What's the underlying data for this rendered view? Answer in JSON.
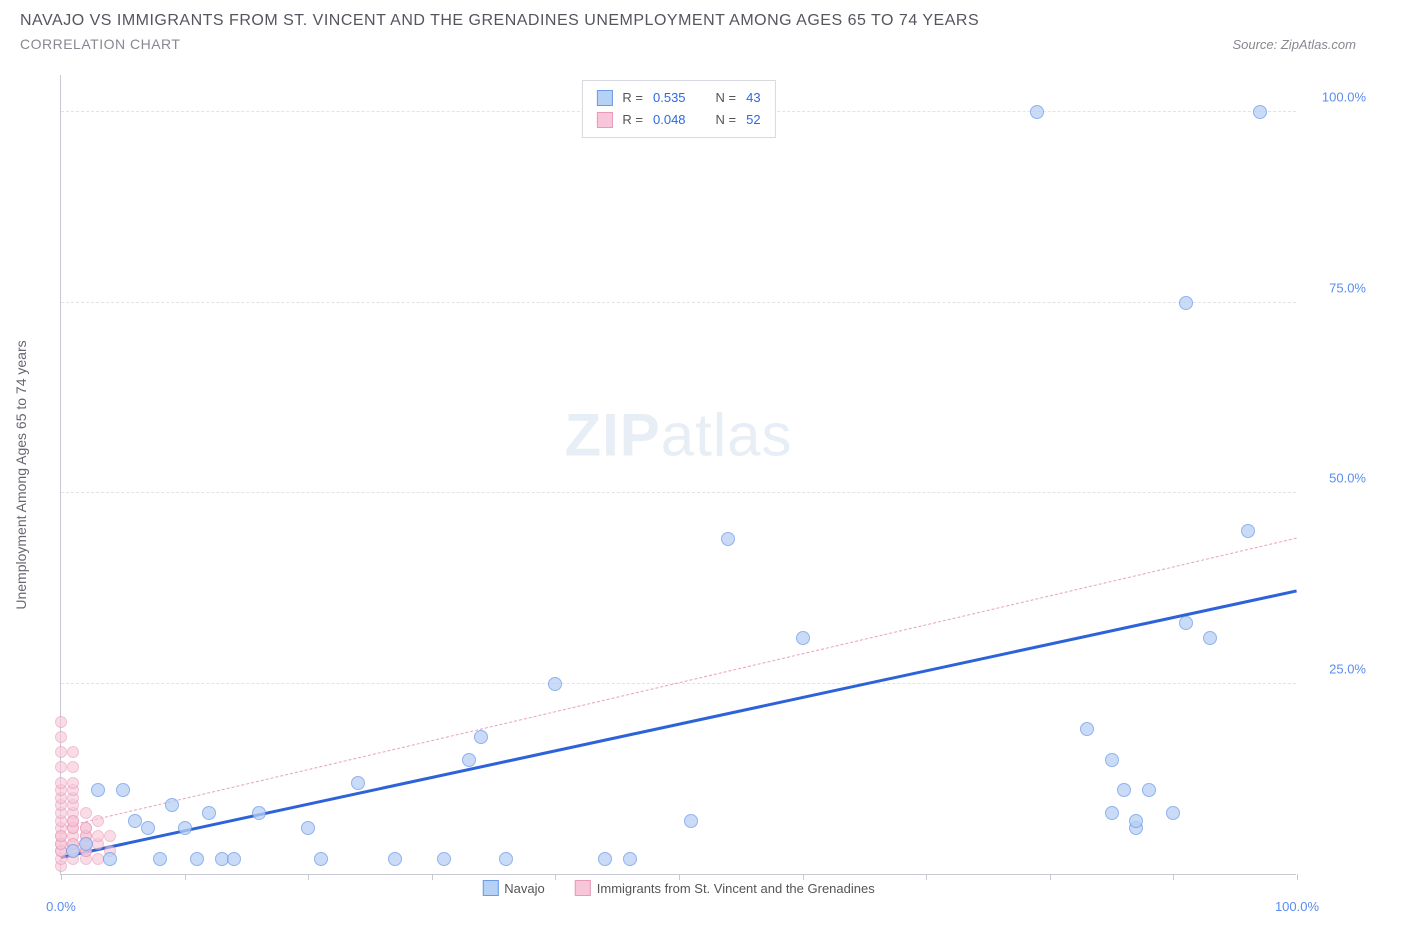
{
  "header": {
    "title": "NAVAJO VS IMMIGRANTS FROM ST. VINCENT AND THE GRENADINES UNEMPLOYMENT AMONG AGES 65 TO 74 YEARS",
    "subtitle": "CORRELATION CHART",
    "source_prefix": "Source: ",
    "source_name": "ZipAtlas.com"
  },
  "chart": {
    "type": "scatter",
    "background_color": "#ffffff",
    "grid_color": "#e2e2e8",
    "axis_color": "#c8c8d0",
    "y_axis_label": "Unemployment Among Ages 65 to 74 years",
    "xlim": [
      0,
      100
    ],
    "ylim": [
      0,
      105
    ],
    "x_ticks": [
      0,
      10,
      20,
      30,
      40,
      50,
      60,
      70,
      80,
      90,
      100
    ],
    "x_tick_labels": {
      "0": "0.0%",
      "100": "100.0%"
    },
    "y_ticks": [
      25,
      50,
      75,
      100
    ],
    "y_tick_labels": {
      "25": "25.0%",
      "50": "50.0%",
      "75": "75.0%",
      "100": "100.0%"
    },
    "label_fontsize": 14,
    "tick_fontsize": 13,
    "tick_color": "#5a8cf0",
    "marker_size_blue": 14,
    "marker_size_pink": 12,
    "watermark": "ZIPatlas",
    "legend_top": {
      "rows": [
        {
          "swatch_fill": "#b7d0f5",
          "swatch_border": "#6a9ae8",
          "r_label": "R =",
          "r_val": "0.535",
          "n_label": "N =",
          "n_val": "43"
        },
        {
          "swatch_fill": "#f7c6d8",
          "swatch_border": "#e89ab8",
          "r_label": "R =",
          "r_val": "0.048",
          "n_label": "N =",
          "n_val": "52"
        }
      ]
    },
    "legend_bottom": {
      "items": [
        {
          "swatch_fill": "#b7d0f5",
          "swatch_border": "#6a9ae8",
          "label": "Navajo"
        },
        {
          "swatch_fill": "#f7c6d8",
          "swatch_border": "#e89ab8",
          "label": "Immigrants from St. Vincent and the Grenadines"
        }
      ]
    },
    "series": [
      {
        "name": "Navajo",
        "fill": "#b7d0f5",
        "border": "#6a9ae8",
        "opacity": 0.75,
        "size": 14,
        "trend": {
          "x1": 0,
          "y1": 2,
          "x2": 100,
          "y2": 37,
          "color": "#2d62d8",
          "width": 3,
          "dash": "solid"
        },
        "points": [
          [
            1,
            3
          ],
          [
            2,
            4
          ],
          [
            3,
            11
          ],
          [
            4,
            2
          ],
          [
            5,
            11
          ],
          [
            6,
            7
          ],
          [
            7,
            6
          ],
          [
            8,
            2
          ],
          [
            9,
            9
          ],
          [
            10,
            6
          ],
          [
            11,
            2
          ],
          [
            12,
            8
          ],
          [
            13,
            2
          ],
          [
            14,
            2
          ],
          [
            16,
            8
          ],
          [
            20,
            6
          ],
          [
            21,
            2
          ],
          [
            24,
            12
          ],
          [
            27,
            2
          ],
          [
            31,
            2
          ],
          [
            33,
            15
          ],
          [
            34,
            18
          ],
          [
            36,
            2
          ],
          [
            40,
            25
          ],
          [
            44,
            2
          ],
          [
            46,
            2
          ],
          [
            51,
            7
          ],
          [
            54,
            44
          ],
          [
            60,
            31
          ],
          [
            79,
            100
          ],
          [
            83,
            19
          ],
          [
            85,
            15
          ],
          [
            85,
            8
          ],
          [
            86,
            11
          ],
          [
            87,
            6
          ],
          [
            87,
            7
          ],
          [
            88,
            11
          ],
          [
            90,
            8
          ],
          [
            91,
            33
          ],
          [
            91,
            75
          ],
          [
            93,
            31
          ],
          [
            96,
            45
          ],
          [
            97,
            100
          ]
        ]
      },
      {
        "name": "Immigrants",
        "fill": "#f7c6d8",
        "border": "#e89ab8",
        "opacity": 0.6,
        "size": 12,
        "trend": {
          "x1": 0,
          "y1": 6,
          "x2": 100,
          "y2": 44,
          "color": "#e5a3bd",
          "width": 1,
          "dash": "dashed"
        },
        "points": [
          [
            0,
            1
          ],
          [
            0,
            2
          ],
          [
            0,
            3
          ],
          [
            0,
            4
          ],
          [
            0,
            5
          ],
          [
            0,
            6
          ],
          [
            0,
            7
          ],
          [
            0,
            8
          ],
          [
            0,
            9
          ],
          [
            0,
            10
          ],
          [
            0,
            11
          ],
          [
            0,
            12
          ],
          [
            0,
            14
          ],
          [
            0,
            16
          ],
          [
            0,
            18
          ],
          [
            0,
            20
          ],
          [
            0,
            3
          ],
          [
            0,
            4
          ],
          [
            0,
            5
          ],
          [
            1,
            2
          ],
          [
            1,
            3
          ],
          [
            1,
            4
          ],
          [
            1,
            5
          ],
          [
            1,
            6
          ],
          [
            1,
            7
          ],
          [
            1,
            8
          ],
          [
            1,
            9
          ],
          [
            1,
            10
          ],
          [
            1,
            11
          ],
          [
            1,
            12
          ],
          [
            1,
            14
          ],
          [
            1,
            16
          ],
          [
            1,
            3
          ],
          [
            1,
            4
          ],
          [
            1,
            6
          ],
          [
            1,
            7
          ],
          [
            2,
            2
          ],
          [
            2,
            3
          ],
          [
            2,
            4
          ],
          [
            2,
            5
          ],
          [
            2,
            6
          ],
          [
            2,
            8
          ],
          [
            2,
            3
          ],
          [
            2,
            4
          ],
          [
            2,
            5
          ],
          [
            2,
            6
          ],
          [
            3,
            2
          ],
          [
            3,
            4
          ],
          [
            3,
            5
          ],
          [
            3,
            7
          ],
          [
            4,
            3
          ],
          [
            4,
            5
          ]
        ]
      }
    ]
  }
}
